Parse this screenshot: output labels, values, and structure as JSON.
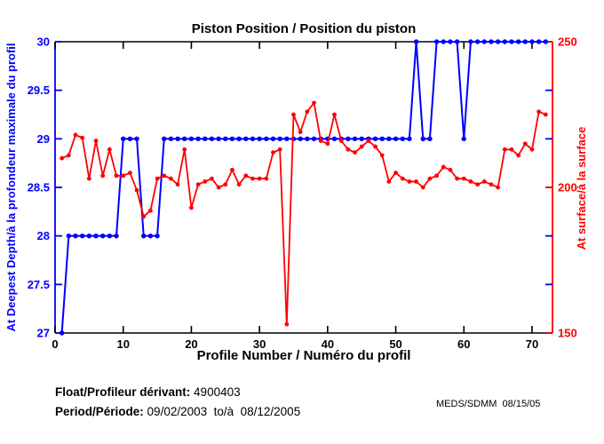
{
  "title": "Piston Position / Position du piston",
  "footer": {
    "float_label": "Float/Profileur dérivant:",
    "float_value": "4900403",
    "period_label": "Period/Période:",
    "period_value": "09/02/2003  to/à  08/12/2005",
    "credit": "MEDS/SDMM  08/15/05"
  },
  "colors": {
    "left_series": "#0000ff",
    "right_series": "#ff0000",
    "frame": "#000000",
    "background": "#ffffff"
  },
  "chart_data": {
    "type": "line",
    "title": "Piston Position / Position du piston",
    "xlabel": "Profile Number / Numéro du profil",
    "grid": false,
    "legend": "none",
    "x_axis": {
      "min": 0,
      "max": 73,
      "ticks": [
        0,
        10,
        20,
        30,
        40,
        50,
        60,
        70
      ],
      "color": "#000000"
    },
    "left_axis": {
      "label": "At Deepest Depth/à la profondeur maximale du profil",
      "min": 27,
      "max": 30,
      "ticks": [
        27,
        27.5,
        28,
        28.5,
        29,
        29.5,
        30
      ],
      "color": "#0000ff"
    },
    "right_axis": {
      "label": "At surface/à la surface",
      "min": 150,
      "max": 250,
      "ticks": [
        150,
        200,
        250
      ],
      "color": "#ff0000"
    },
    "x": [
      1,
      2,
      3,
      4,
      5,
      6,
      7,
      8,
      9,
      10,
      11,
      12,
      13,
      14,
      15,
      16,
      17,
      18,
      19,
      20,
      21,
      22,
      23,
      24,
      25,
      26,
      27,
      28,
      29,
      30,
      31,
      32,
      33,
      34,
      35,
      36,
      37,
      38,
      39,
      40,
      41,
      42,
      43,
      44,
      45,
      46,
      47,
      48,
      49,
      50,
      51,
      52,
      53,
      54,
      55,
      56,
      57,
      58,
      59,
      60,
      61,
      62,
      63,
      64,
      65,
      66,
      67,
      68,
      69,
      70,
      71,
      72
    ],
    "series": [
      {
        "name": "At Deepest Depth/à la profondeur maximale du profil",
        "axis": "left",
        "color": "#0000ff",
        "values": [
          27,
          28,
          28,
          28,
          28,
          28,
          28,
          28,
          28,
          29,
          29,
          29,
          28,
          28,
          28,
          29,
          29,
          29,
          29,
          29,
          29,
          29,
          29,
          29,
          29,
          29,
          29,
          29,
          29,
          29,
          29,
          29,
          29,
          29,
          29,
          29,
          29,
          29,
          29,
          29,
          29,
          29,
          29,
          29,
          29,
          29,
          29,
          29,
          29,
          29,
          29,
          29,
          30,
          29,
          29,
          30,
          30,
          30,
          30,
          29,
          30,
          30,
          30,
          30,
          30,
          30,
          30,
          30,
          30,
          30,
          30,
          30
        ]
      },
      {
        "name": "At surface/à la surface",
        "axis": "right",
        "color": "#ff0000",
        "values": [
          210,
          211,
          218,
          217,
          203,
          216,
          204,
          213,
          204,
          204,
          205,
          199,
          190,
          192,
          203,
          204,
          203,
          201,
          213,
          193,
          201,
          202,
          203,
          200,
          201,
          206,
          201,
          204,
          203,
          203,
          203,
          212,
          213,
          153,
          225,
          219,
          226,
          229,
          216,
          215,
          225,
          216,
          213,
          212,
          214,
          216,
          214,
          211,
          202,
          205,
          203,
          202,
          202,
          200,
          203,
          204,
          207,
          206,
          203,
          203,
          202,
          201,
          202,
          201,
          200,
          213,
          213,
          211,
          215,
          213,
          226,
          225
        ]
      }
    ]
  }
}
